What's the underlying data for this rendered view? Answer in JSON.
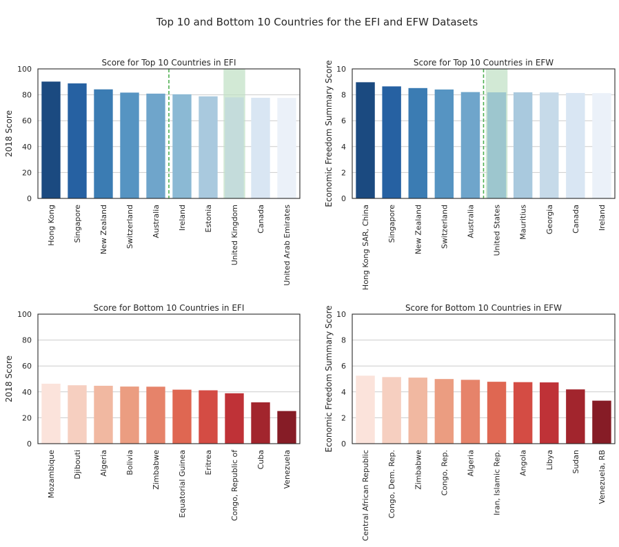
{
  "figure": {
    "suptitle": "Top 10 and Bottom 10 Countries for the EFI and EFW Datasets"
  },
  "colors": {
    "grid": "#cccccc",
    "axes": "#262626",
    "highlight_band": "#bfe0c4",
    "highlight_line": "#4caf50"
  },
  "chart_data": [
    {
      "type": "bar",
      "title": "Score for Top 10 Countries in EFI",
      "xlabel": "",
      "ylabel": "2018 Score",
      "ylim": [
        0,
        100
      ],
      "yticks": [
        0,
        20,
        40,
        60,
        80,
        100
      ],
      "grid": "horizontal",
      "categories": [
        "Hong Kong",
        "Singapore",
        "New Zealand",
        "Switzerland",
        "Australia",
        "Ireland",
        "Estonia",
        "United Kingdom",
        "Canada",
        "United Arab Emirates"
      ],
      "values": [
        90.2,
        88.8,
        84.2,
        81.7,
        80.9,
        80.4,
        78.8,
        78.0,
        77.7,
        77.6
      ],
      "colors": [
        "#1b4a80",
        "#2661a2",
        "#3b7cb3",
        "#5694c2",
        "#6fa5cb",
        "#8bb9d4",
        "#a9c9de",
        "#c6dae9",
        "#d9e6f3",
        "#ebf1f9"
      ],
      "highlight_band": "United Kingdom",
      "divider_after": "Australia"
    },
    {
      "type": "bar",
      "title": "Score for Top 10 Countries in EFW",
      "xlabel": "",
      "ylabel": "Economic Freedom Summary Score",
      "ylim": [
        0,
        10
      ],
      "yticks": [
        0,
        2,
        4,
        6,
        8,
        10
      ],
      "grid": "horizontal",
      "categories": [
        "Hong Kong SAR, China",
        "Singapore",
        "New Zealand",
        "Switzerland",
        "Australia",
        "United States",
        "Mauritius",
        "Georgia",
        "Canada",
        "Ireland"
      ],
      "values": [
        8.97,
        8.65,
        8.52,
        8.41,
        8.21,
        8.19,
        8.19,
        8.18,
        8.14,
        8.13
      ],
      "colors": [
        "#1b4a80",
        "#2661a2",
        "#3b7cb3",
        "#5694c2",
        "#6fa5cb",
        "#8bb9d4",
        "#a9c9de",
        "#c6dae9",
        "#d9e6f3",
        "#ebf1f9"
      ],
      "highlight_band": "United States",
      "divider_after": "Australia"
    },
    {
      "type": "bar",
      "title": "Score for Bottom 10 Countries in EFI",
      "xlabel": "",
      "ylabel": "2018 Score",
      "ylim": [
        0,
        100
      ],
      "yticks": [
        0,
        20,
        40,
        60,
        80,
        100
      ],
      "grid": "horizontal",
      "categories": [
        "Mozambique",
        "Djibouti",
        "Algeria",
        "Bolivia",
        "Zimbabwe",
        "Equatorial Guinea",
        "Eritrea",
        "Congo, Republic of",
        "Cuba",
        "Venezuela"
      ],
      "values": [
        46.3,
        45.1,
        44.7,
        44.1,
        44.0,
        41.7,
        41.2,
        38.9,
        31.9,
        25.2
      ],
      "colors": [
        "#fbe3db",
        "#f6cfc0",
        "#f1b8a1",
        "#eb9d81",
        "#e6836a",
        "#df6752",
        "#d44c44",
        "#bf3237",
        "#a2252d",
        "#861c26"
      ]
    },
    {
      "type": "bar",
      "title": "Score for Bottom 10 Countries in EFW",
      "xlabel": "",
      "ylabel": "Economic Freedom Summary Score",
      "ylim": [
        0,
        10
      ],
      "yticks": [
        0,
        2,
        4,
        6,
        8,
        10
      ],
      "grid": "horizontal",
      "categories": [
        "Central African Republic",
        "Congo, Dem. Rep.",
        "Zimbabwe",
        "Congo, Rep.",
        "Algeria",
        "Iran, Islamic Rep.",
        "Angola",
        "Libya",
        "Sudan",
        "Venezuela, RB"
      ],
      "values": [
        5.25,
        5.14,
        5.1,
        4.99,
        4.93,
        4.78,
        4.75,
        4.73,
        4.19,
        3.32
      ],
      "colors": [
        "#fbe3db",
        "#f6cfc0",
        "#f1b8a1",
        "#eb9d81",
        "#e6836a",
        "#df6752",
        "#d44c44",
        "#bf3237",
        "#a2252d",
        "#861c26"
      ]
    }
  ]
}
